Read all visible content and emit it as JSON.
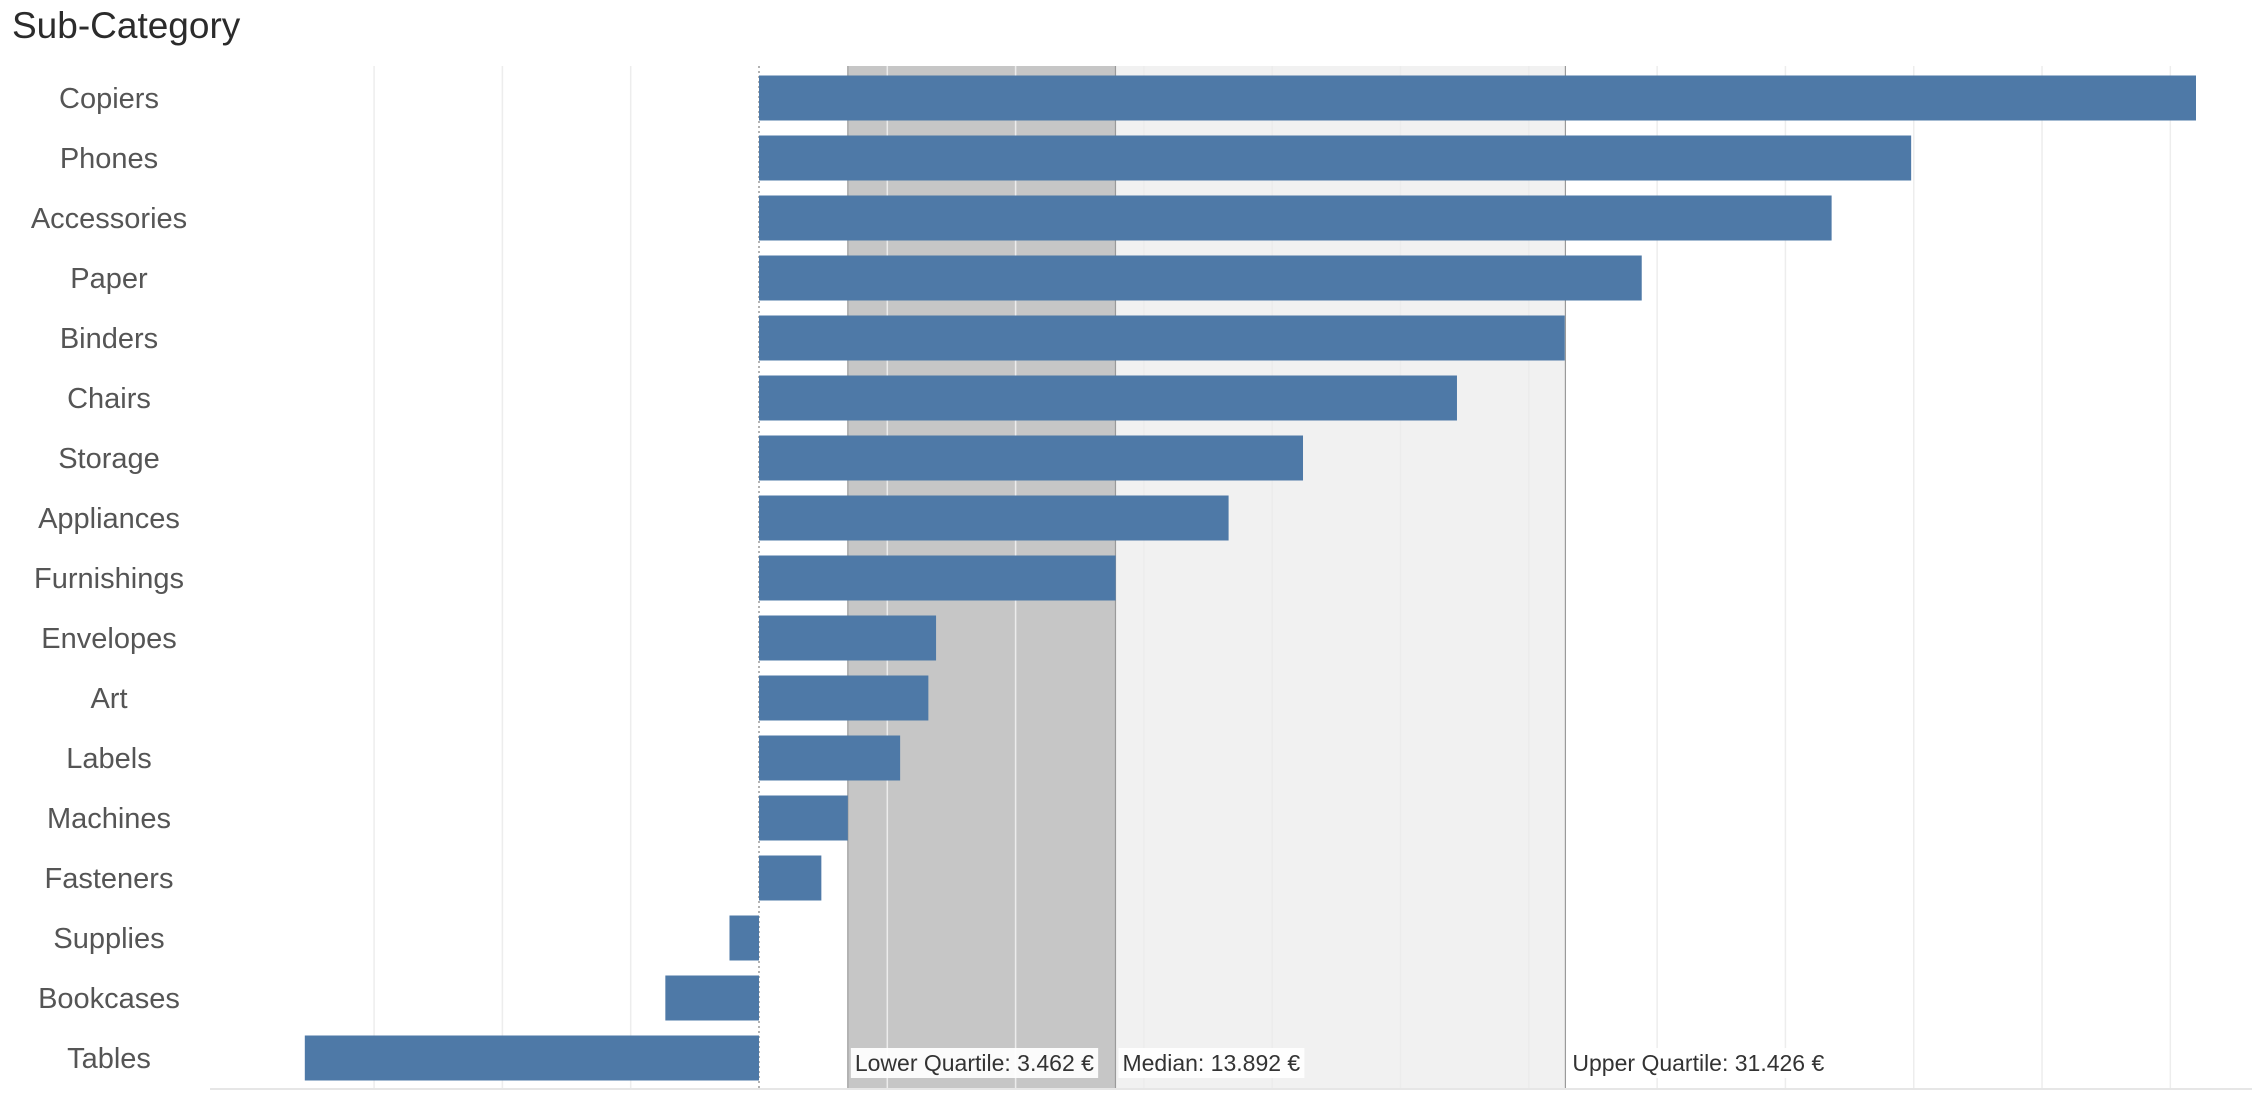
{
  "chart_data": {
    "type": "bar",
    "orientation": "horizontal",
    "header": "Sub-Category",
    "title": "",
    "xlabel": "",
    "ylabel": "Sub-Category",
    "xlim": [
      -18000,
      56000
    ],
    "grid": true,
    "categories": [
      "Copiers",
      "Phones",
      "Accessories",
      "Paper",
      "Binders",
      "Chairs",
      "Storage",
      "Appliances",
      "Furnishings",
      "Envelopes",
      "Art",
      "Labels",
      "Machines",
      "Fasteners",
      "Supplies",
      "Bookcases",
      "Tables"
    ],
    "values": [
      56000,
      44900,
      41800,
      34400,
      31400,
      27200,
      21200,
      18300,
      13900,
      6900,
      6600,
      5500,
      3462,
      2430,
      -1150,
      -3650,
      -17700
    ],
    "series_color": "#4e79a7",
    "reference_bands": [
      {
        "from": 3462,
        "to": 13892,
        "color": "#c6c6c6"
      },
      {
        "from": 13892,
        "to": 31426,
        "color": "#f1f1f1"
      }
    ],
    "reference_lines": [
      {
        "value": 3462,
        "label": "Lower Quartile: 3.462 €"
      },
      {
        "value": 13892,
        "label": "Median: 13.892 €"
      },
      {
        "value": 31426,
        "label": "Upper Quartile: 31.426 €"
      }
    ],
    "zero_line": "dotted"
  }
}
